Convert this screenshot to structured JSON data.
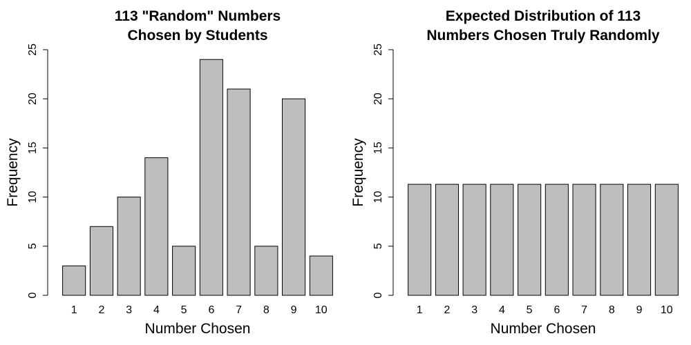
{
  "chart_data": [
    {
      "type": "bar",
      "title": [
        "113 \"Random\" Numbers",
        "Chosen by Students"
      ],
      "xlabel": "Number Chosen",
      "ylabel": "Frequency",
      "categories": [
        "1",
        "2",
        "3",
        "4",
        "5",
        "6",
        "7",
        "8",
        "9",
        "10"
      ],
      "values": [
        3,
        7,
        10,
        14,
        5,
        24,
        21,
        5,
        20,
        4
      ],
      "ylim": [
        0,
        25
      ],
      "yticks": [
        0,
        5,
        10,
        15,
        20,
        25
      ],
      "bar_color": "#bebebe",
      "grid": false,
      "legend": "none"
    },
    {
      "type": "bar",
      "title": [
        "Expected Distribution of 113",
        "Numbers Chosen Truly Randomly"
      ],
      "xlabel": "Number Chosen",
      "ylabel": "Frequency",
      "categories": [
        "1",
        "2",
        "3",
        "4",
        "5",
        "6",
        "7",
        "8",
        "9",
        "10"
      ],
      "values": [
        11.3,
        11.3,
        11.3,
        11.3,
        11.3,
        11.3,
        11.3,
        11.3,
        11.3,
        11.3
      ],
      "ylim": [
        0,
        25
      ],
      "yticks": [
        0,
        5,
        10,
        15,
        20,
        25
      ],
      "bar_color": "#bebebe",
      "grid": false,
      "legend": "none"
    }
  ]
}
